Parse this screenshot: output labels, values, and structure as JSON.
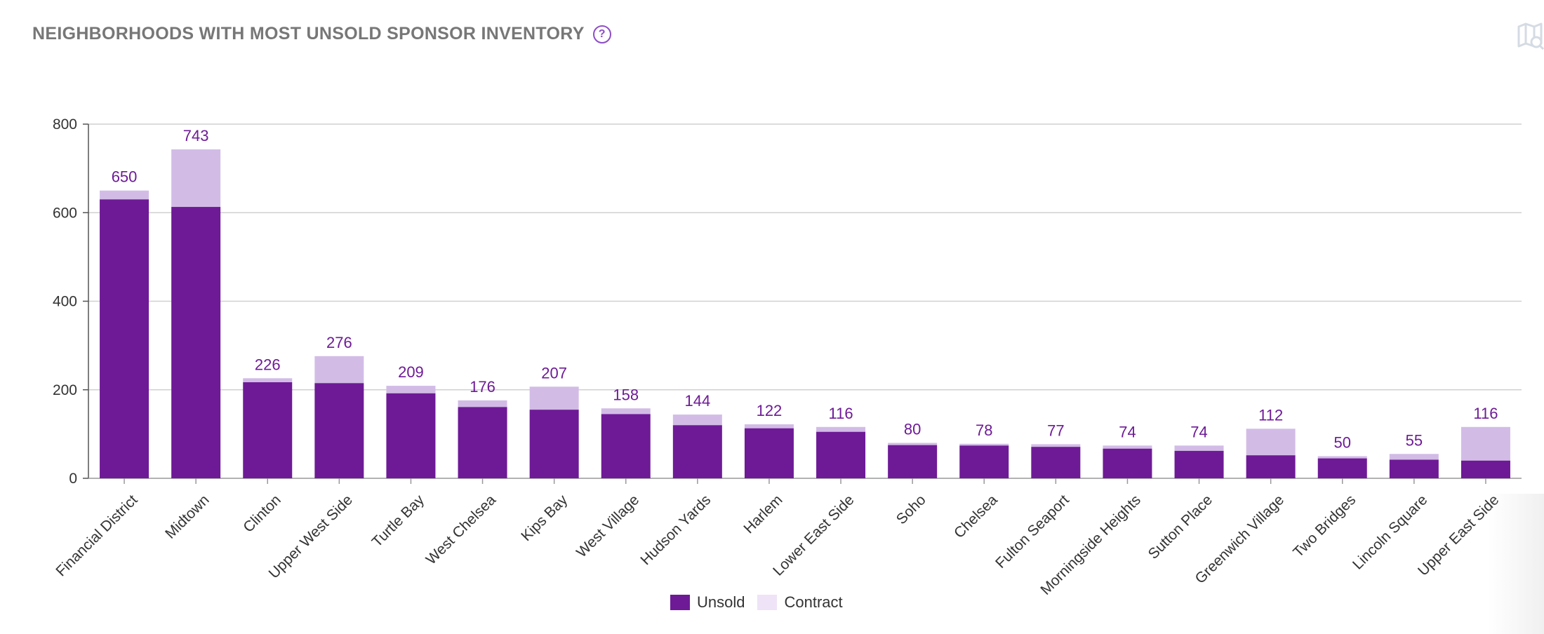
{
  "header": {
    "title": "NEIGHBORHOODS WITH MOST UNSOLD SPONSOR INVENTORY",
    "help_icon": "?",
    "map_icon": "map-search-icon"
  },
  "colors": {
    "unsold": "#6e1a96",
    "contract": "#d2bce6",
    "label": "#6e1a96",
    "grid": "#d0d0d0",
    "axis": "#555555"
  },
  "legend": {
    "unsold_label": "Unsold",
    "contract_label": "Contract",
    "contract_swatch": "#efe3f7"
  },
  "chart_data": {
    "type": "bar",
    "stacked": true,
    "title": "NEIGHBORHOODS WITH MOST UNSOLD SPONSOR INVENTORY",
    "xlabel": "",
    "ylabel": "",
    "ylim": [
      0,
      800
    ],
    "yticks": [
      0,
      200,
      400,
      600,
      800
    ],
    "grid": true,
    "legend_position": "bottom-center",
    "categories": [
      "Financial District",
      "Midtown",
      "Clinton",
      "Upper West Side",
      "Turtle Bay",
      "West Chelsea",
      "Kips Bay",
      "West Village",
      "Hudson Yards",
      "Harlem",
      "Lower East Side",
      "Soho",
      "Chelsea",
      "Fulton Seaport",
      "Morningside Heights",
      "Sutton Place",
      "Greenwich Village",
      "Two Bridges",
      "Lincoln Square",
      "Upper East Side"
    ],
    "series": [
      {
        "name": "Unsold",
        "values": [
          630,
          613,
          217,
          215,
          192,
          161,
          155,
          145,
          120,
          113,
          105,
          75,
          74,
          71,
          67,
          62,
          52,
          45,
          42,
          40
        ]
      },
      {
        "name": "Contract",
        "values": [
          20,
          130,
          9,
          61,
          17,
          15,
          52,
          13,
          24,
          9,
          11,
          5,
          4,
          6,
          7,
          12,
          60,
          5,
          13,
          76
        ]
      }
    ],
    "totals": [
      650,
      743,
      226,
      276,
      209,
      176,
      207,
      158,
      144,
      122,
      116,
      80,
      78,
      77,
      74,
      74,
      112,
      50,
      55,
      116
    ]
  }
}
